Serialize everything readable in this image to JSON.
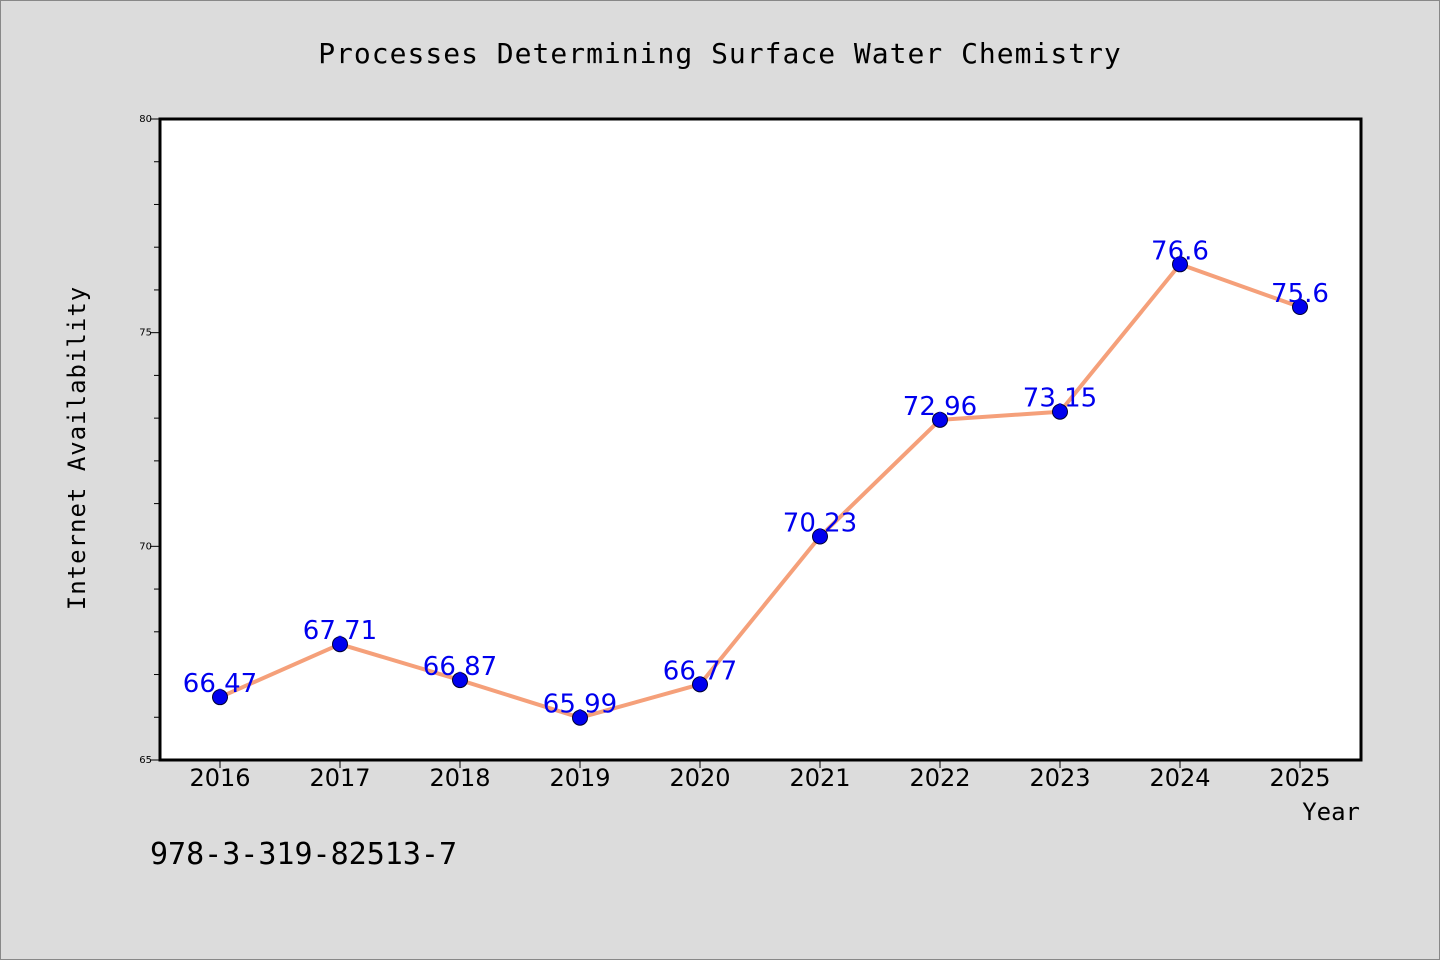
{
  "chart_data": {
    "type": "line",
    "title": "Processes Determining Surface Water Chemistry",
    "xlabel": "Year",
    "ylabel": "Internet Availability",
    "annotation": "978-3-319-82513-7",
    "x": [
      "2016",
      "2017",
      "2018",
      "2019",
      "2020",
      "2021",
      "2022",
      "2023",
      "2024",
      "2025"
    ],
    "series": [
      {
        "values": [
          66.47,
          67.71,
          66.87,
          65.99,
          66.77,
          70.23,
          72.96,
          73.15,
          76.6,
          75.6
        ],
        "labels": [
          "66.47",
          "67.71",
          "66.87",
          "65.99",
          "66.77",
          "70.23",
          "72.96",
          "73.15",
          "76.6",
          "75.6"
        ],
        "line_color": "#f5a07a",
        "marker_color": "#0000ee",
        "label_color": "#0000ee"
      }
    ],
    "ylim": [
      65,
      80
    ],
    "y_major_ticks": [
      65,
      70,
      75,
      80
    ],
    "y_minor_step": 1,
    "grid": false,
    "legend": "none",
    "background": "#dcdcdc",
    "plot_background": "#ffffff"
  }
}
